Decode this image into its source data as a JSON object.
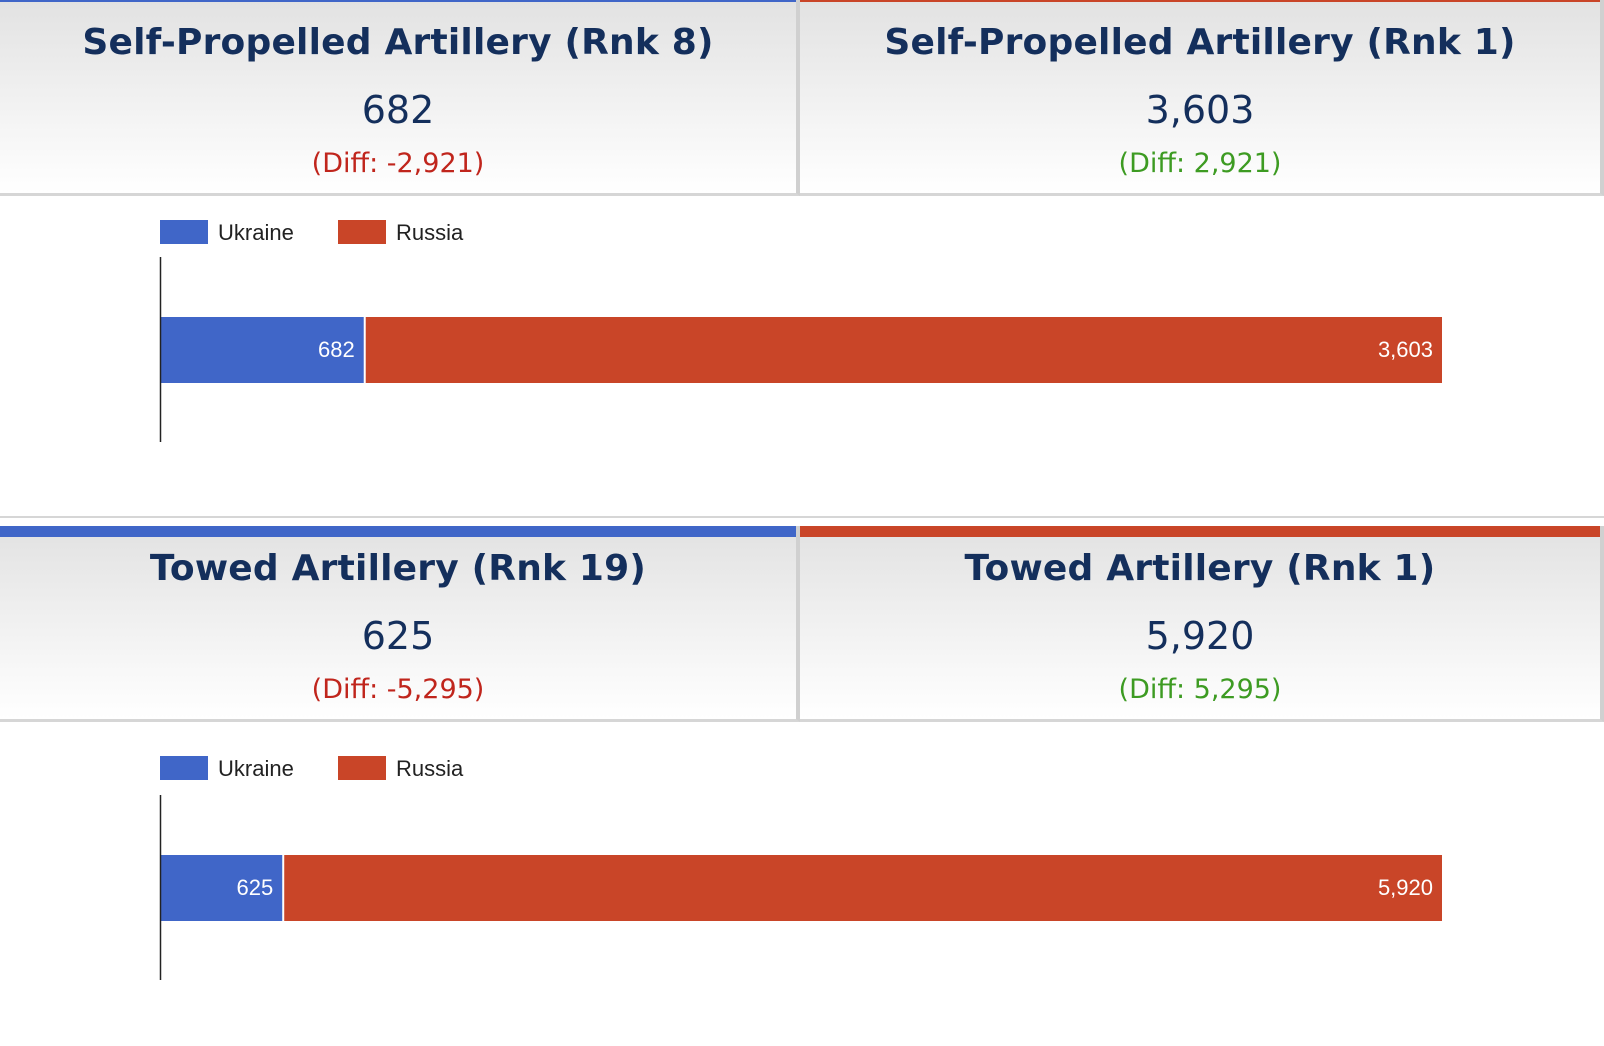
{
  "colors": {
    "ukraine": "#4066c8",
    "russia": "#c94528",
    "title": "#142f5c",
    "diff_negative": "#c0251c",
    "diff_positive": "#3d9b22"
  },
  "sections": [
    {
      "ukraine_panel": {
        "title": "Self-Propelled Artillery (Rnk 8)",
        "value": "682",
        "diff": "(Diff: -2,921)"
      },
      "russia_panel": {
        "title": "Self-Propelled Artillery (Rnk 1)",
        "value": "3,603",
        "diff": "(Diff: 2,921)"
      },
      "legend": {
        "ukraine": "Ukraine",
        "russia": "Russia"
      }
    },
    {
      "ukraine_panel": {
        "title": "Towed Artillery (Rnk 19)",
        "value": "625",
        "diff": "(Diff: -5,295)"
      },
      "russia_panel": {
        "title": "Towed Artillery (Rnk 1)",
        "value": "5,920",
        "diff": "(Diff: 5,295)"
      },
      "legend": {
        "ukraine": "Ukraine",
        "russia": "Russia"
      }
    }
  ],
  "chart_data": [
    {
      "type": "bar",
      "orientation": "horizontal",
      "stacked": true,
      "categories": [
        ""
      ],
      "series": [
        {
          "name": "Ukraine",
          "values": [
            682
          ],
          "labels": [
            "682"
          ]
        },
        {
          "name": "Russia",
          "values": [
            3603
          ],
          "labels": [
            "3,603"
          ]
        }
      ],
      "xlim": [
        0,
        4285
      ],
      "grid": false,
      "legend_position": "top-left"
    },
    {
      "type": "bar",
      "orientation": "horizontal",
      "stacked": true,
      "categories": [
        ""
      ],
      "series": [
        {
          "name": "Ukraine",
          "values": [
            625
          ],
          "labels": [
            "625"
          ]
        },
        {
          "name": "Russia",
          "values": [
            5920
          ],
          "labels": [
            "5,920"
          ]
        }
      ],
      "xlim": [
        0,
        6545
      ],
      "grid": false,
      "legend_position": "top-left"
    }
  ]
}
